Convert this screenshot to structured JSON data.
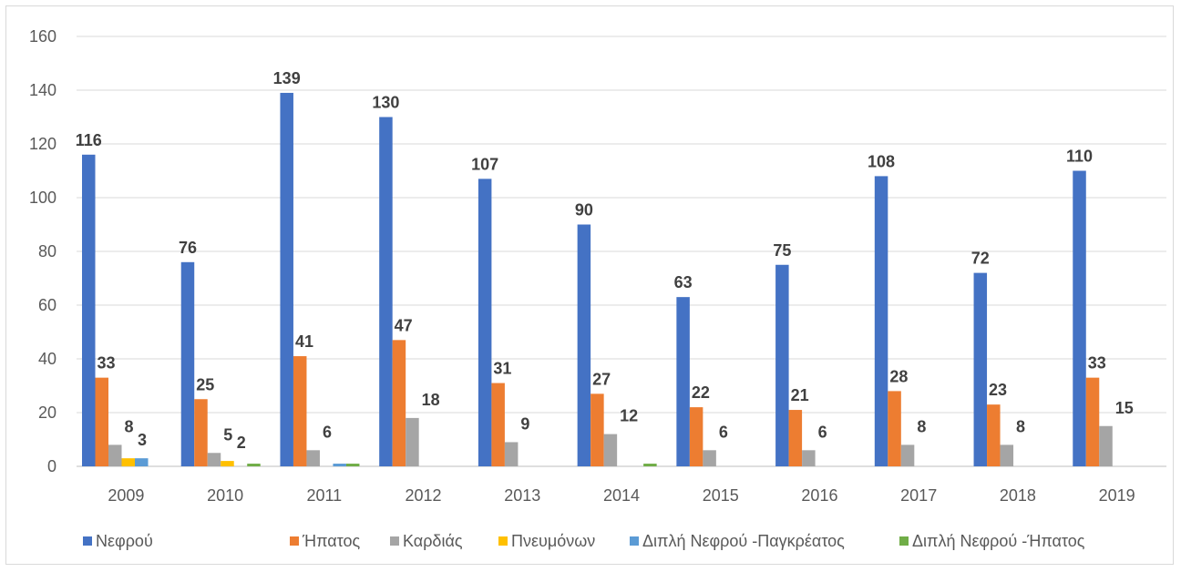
{
  "chart_data": {
    "type": "bar",
    "categories": [
      "2009",
      "2010",
      "2011",
      "2012",
      "2013",
      "2014",
      "2015",
      "2016",
      "2017",
      "2018",
      "2019"
    ],
    "series": [
      {
        "name": "Νεφρού",
        "color": "#4472C4",
        "values": [
          116,
          76,
          139,
          130,
          107,
          90,
          63,
          75,
          108,
          72,
          110
        ]
      },
      {
        "name": "Ήπατος",
        "color": "#ED7D31",
        "values": [
          33,
          25,
          41,
          47,
          31,
          27,
          22,
          21,
          28,
          23,
          33
        ]
      },
      {
        "name": "Καρδιάς",
        "color": "#A5A5A5",
        "values": [
          8,
          5,
          6,
          18,
          9,
          12,
          6,
          6,
          8,
          8,
          15
        ]
      },
      {
        "name": "Πνευμόνων",
        "color": "#FFC000",
        "values": [
          3,
          2,
          0,
          0,
          0,
          0,
          0,
          0,
          0,
          0,
          0
        ]
      },
      {
        "name": "Διπλή Νεφρού -Παγκρέατος",
        "color": "#5B9BD5",
        "values": [
          3,
          0,
          1,
          0,
          0,
          0,
          0,
          0,
          0,
          0,
          0
        ]
      },
      {
        "name": "Διπλή Νεφρού -Ήπατος",
        "color": "#70AD47",
        "values": [
          0,
          1,
          1,
          0,
          0,
          1,
          0,
          0,
          0,
          0,
          0
        ]
      }
    ],
    "data_labels": [
      [
        "116",
        "76",
        "139",
        "130",
        "107",
        "90",
        "63",
        "75",
        "108",
        "72",
        "110"
      ],
      [
        "33",
        "25",
        "41",
        "47",
        "31",
        "27",
        "22",
        "21",
        "28",
        "23",
        "33"
      ],
      [
        "8",
        "5",
        "6",
        "18",
        "9",
        "12",
        "6",
        "6",
        "8",
        "8",
        "15"
      ],
      [
        "3",
        "2",
        "",
        "",
        "",
        "",
        "",
        "",
        "",
        "",
        ""
      ],
      [
        "",
        "",
        "",
        "",
        "",
        "",
        "",
        "",
        "",
        "",
        ""
      ],
      [
        "",
        "",
        "",
        "",
        "",
        "",
        "",
        "",
        "",
        "",
        ""
      ]
    ],
    "yticks": [
      "0",
      "20",
      "40",
      "60",
      "80",
      "100",
      "120",
      "140",
      "160"
    ],
    "ylim": [
      0,
      160
    ],
    "grid": true,
    "legend_position": "bottom",
    "title": "",
    "xlabel": "",
    "ylabel": ""
  }
}
